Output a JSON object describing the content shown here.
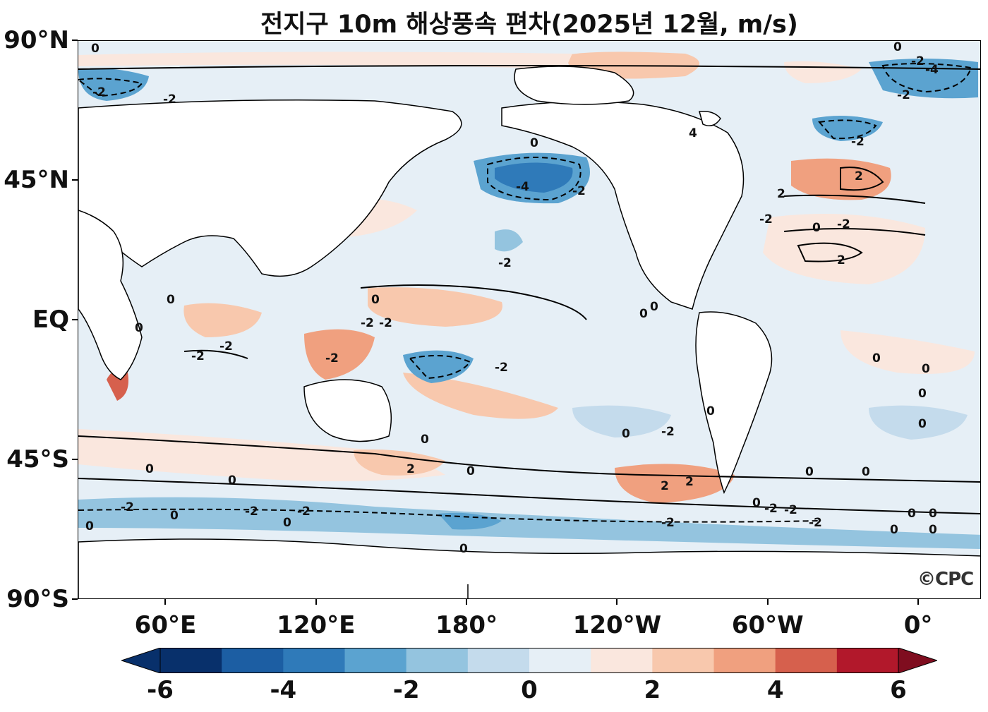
{
  "title": "전지구 10m 해상풍속 편차(2025년 12월, m/s)",
  "axes": {
    "lat_ticks": [
      {
        "label": "90°N",
        "lat": 90
      },
      {
        "label": "45°N",
        "lat": 45
      },
      {
        "label": "EQ",
        "lat": 0
      },
      {
        "label": "45°S",
        "lat": -45
      },
      {
        "label": "90°S",
        "lat": -90
      }
    ],
    "lon_ticks": [
      {
        "label": "60°E",
        "lon": 60
      },
      {
        "label": "120°E",
        "lon": 120
      },
      {
        "label": "180°",
        "lon": 180
      },
      {
        "label": "120°W",
        "lon": 240
      },
      {
        "label": "60°W",
        "lon": 300
      },
      {
        "label": "0°",
        "lon": 360
      }
    ],
    "lon_range": [
      25,
      385
    ],
    "lat_range": [
      -90,
      90
    ]
  },
  "colorbar": {
    "levels": [
      -6,
      -5,
      -4,
      -3,
      -2,
      -1,
      0,
      1,
      2,
      3,
      4,
      5,
      6
    ],
    "labels": [
      "-6",
      "-4",
      "-2",
      "0",
      "2",
      "4",
      "6"
    ],
    "colors": [
      "#08306b",
      "#1c5ea3",
      "#2f7ab9",
      "#5ba3d0",
      "#94c4df",
      "#c4dbec",
      "#e6eff6",
      "#fae7de",
      "#f8c8ad",
      "#f0a07f",
      "#d6604d",
      "#b2182b",
      "#7f0d1f"
    ],
    "extend": "both",
    "units": "m/s"
  },
  "contour_levels": [
    "0",
    "-2",
    "2",
    "-4",
    "4"
  ],
  "credit": "©CPC"
}
